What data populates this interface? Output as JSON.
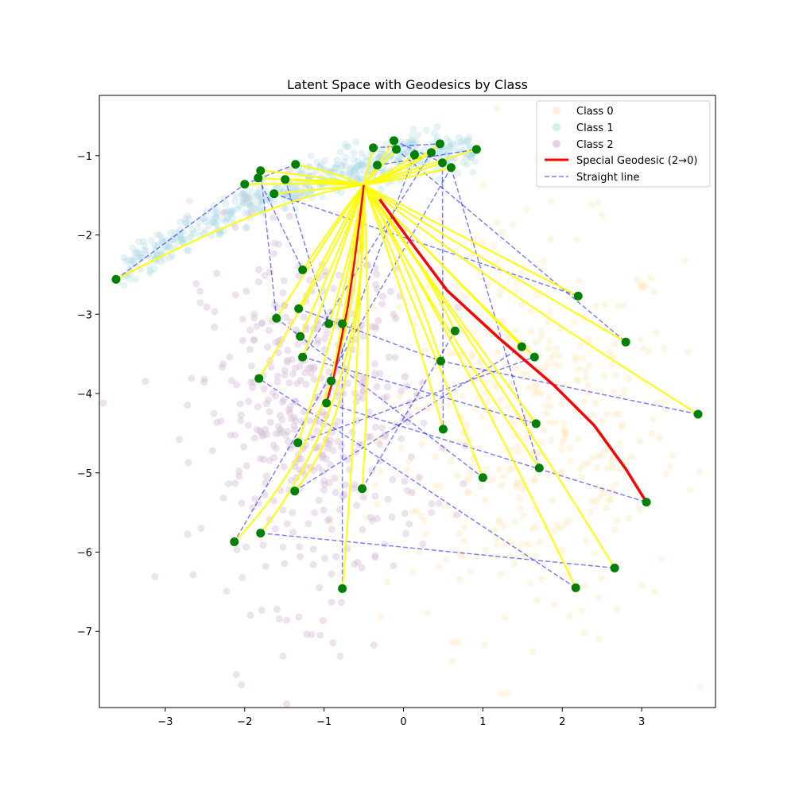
{
  "chart_data": {
    "type": "scatter",
    "title": "Latent Space with Geodesics by Class",
    "xlabel": "",
    "ylabel": "",
    "xlim": [
      -3.83,
      3.93
    ],
    "ylim": [
      -7.96,
      -0.24
    ],
    "xticks": [
      -3,
      -2,
      -1,
      0,
      1,
      2,
      3
    ],
    "yticks": [
      -1,
      -2,
      -3,
      -4,
      -5,
      -6,
      -7
    ],
    "tick_labels_x": [
      "−3",
      "−2",
      "−1",
      "0",
      "1",
      "2",
      "3"
    ],
    "tick_labels_y": [
      "−1",
      "−2",
      "−3",
      "−4",
      "−5",
      "−6",
      "−7"
    ],
    "grid": false,
    "legend_position": "top-right",
    "legend": {
      "class0": "Class 0",
      "class1": "Class 1",
      "class2": "Class 2",
      "special": "Special Geodesic (2→0)",
      "straight": "Straight line"
    },
    "colors": {
      "class0": "#FFE4B5",
      "class1": "#ADD8E6",
      "class2": "#D8BFD8",
      "geodesic": "#FFFF00",
      "special": "#FF0000",
      "straight": "#0000FF",
      "endpoint": "#008000"
    },
    "class_clusters": [
      {
        "class": 0,
        "center": [
          1.6,
          -4.5
        ],
        "spread": [
          0.95,
          1.25
        ],
        "count": 420
      },
      {
        "class": 1,
        "center": [
          -0.3,
          -1.05
        ],
        "spread": [
          1.1,
          0.25
        ],
        "count": 520
      },
      {
        "class": 2,
        "center": [
          -1.15,
          -4.3
        ],
        "spread": [
          0.7,
          1.15
        ],
        "count": 460
      }
    ],
    "hub": [
      -0.5,
      -1.37
    ],
    "endpoints": [
      [
        -3.62,
        -2.56
      ],
      [
        -2.0,
        -1.36
      ],
      [
        -1.8,
        -1.19
      ],
      [
        -1.83,
        -1.28
      ],
      [
        -1.63,
        -1.48
      ],
      [
        -1.49,
        -1.3
      ],
      [
        -1.36,
        -1.11
      ],
      [
        -0.38,
        -0.9
      ],
      [
        -0.33,
        -1.12
      ],
      [
        -0.12,
        -0.81
      ],
      [
        -0.09,
        -0.92
      ],
      [
        0.14,
        -0.99
      ],
      [
        0.35,
        -0.96
      ],
      [
        0.46,
        -0.85
      ],
      [
        0.49,
        -1.09
      ],
      [
        0.6,
        -1.15
      ],
      [
        0.92,
        -0.92
      ],
      [
        -1.27,
        -2.44
      ],
      [
        -1.6,
        -3.05
      ],
      [
        -1.32,
        -2.93
      ],
      [
        -1.3,
        -3.28
      ],
      [
        -1.27,
        -3.54
      ],
      [
        -0.94,
        -3.12
      ],
      [
        -0.77,
        -3.12
      ],
      [
        -1.82,
        -3.81
      ],
      [
        -0.91,
        -3.84
      ],
      [
        -1.33,
        -4.62
      ],
      [
        -1.37,
        -5.23
      ],
      [
        -1.8,
        -5.76
      ],
      [
        -2.13,
        -5.87
      ],
      [
        -0.52,
        -5.2
      ],
      [
        -0.77,
        -6.46
      ],
      [
        0.47,
        -3.59
      ],
      [
        0.65,
        -3.21
      ],
      [
        0.5,
        -4.45
      ],
      [
        1.0,
        -5.06
      ],
      [
        1.49,
        -3.41
      ],
      [
        1.65,
        -3.54
      ],
      [
        1.67,
        -4.38
      ],
      [
        1.71,
        -4.94
      ],
      [
        2.2,
        -2.77
      ],
      [
        2.8,
        -3.35
      ],
      [
        3.71,
        -4.26
      ],
      [
        2.66,
        -6.2
      ],
      [
        2.17,
        -6.45
      ],
      [
        3.06,
        -5.37
      ],
      [
        -0.97,
        -4.12
      ]
    ],
    "special_geodesic": [
      [
        -0.5,
        -1.37
      ],
      [
        -0.55,
        -1.8
      ],
      [
        -0.62,
        -2.35
      ],
      [
        -0.7,
        -2.9
      ],
      [
        -0.8,
        -3.4
      ],
      [
        -0.88,
        -3.8
      ],
      [
        -0.97,
        -4.12
      ]
    ],
    "special_geodesic_b": [
      [
        -0.3,
        -1.55
      ],
      [
        0.1,
        -2.1
      ],
      [
        0.55,
        -2.7
      ],
      [
        1.2,
        -3.3
      ],
      [
        1.9,
        -3.9
      ],
      [
        2.4,
        -4.4
      ],
      [
        2.8,
        -4.95
      ],
      [
        3.06,
        -5.37
      ]
    ],
    "straight_lines": [
      [
        [
          -3.62,
          -2.56
        ],
        [
          -2.0,
          -1.36
        ]
      ],
      [
        [
          -2.0,
          -1.36
        ],
        [
          -1.36,
          -1.11
        ]
      ],
      [
        [
          -1.8,
          -1.19
        ],
        [
          -1.6,
          -3.05
        ]
      ],
      [
        [
          -1.83,
          -1.28
        ],
        [
          -1.27,
          -2.44
        ]
      ],
      [
        [
          -1.63,
          -1.48
        ],
        [
          2.2,
          -2.77
        ]
      ],
      [
        [
          -1.49,
          -1.3
        ],
        [
          -0.94,
          -3.12
        ]
      ],
      [
        [
          -0.38,
          -0.9
        ],
        [
          0.46,
          -0.85
        ]
      ],
      [
        [
          -0.33,
          -1.12
        ],
        [
          0.92,
          -0.92
        ]
      ],
      [
        [
          -0.12,
          -0.81
        ],
        [
          0.49,
          -1.09
        ]
      ],
      [
        [
          -0.09,
          -0.92
        ],
        [
          2.8,
          -3.35
        ]
      ],
      [
        [
          0.14,
          -0.99
        ],
        [
          -0.91,
          -3.84
        ]
      ],
      [
        [
          0.35,
          -0.96
        ],
        [
          -1.27,
          -3.54
        ]
      ],
      [
        [
          0.6,
          -1.15
        ],
        [
          1.71,
          -4.94
        ]
      ],
      [
        [
          0.6,
          -1.15
        ],
        [
          -2.13,
          -5.87
        ]
      ],
      [
        [
          0.49,
          -1.09
        ],
        [
          0.5,
          -4.45
        ]
      ],
      [
        [
          -1.6,
          -3.05
        ],
        [
          1.0,
          -5.06
        ]
      ],
      [
        [
          -1.32,
          -2.93
        ],
        [
          0.47,
          -3.59
        ]
      ],
      [
        [
          -1.27,
          -3.54
        ],
        [
          1.67,
          -4.38
        ]
      ],
      [
        [
          -0.97,
          -4.12
        ],
        [
          3.06,
          -5.37
        ]
      ],
      [
        [
          -1.8,
          -5.76
        ],
        [
          2.66,
          -6.2
        ]
      ],
      [
        [
          -1.37,
          -5.23
        ],
        [
          1.49,
          -3.41
        ]
      ],
      [
        [
          0.47,
          -3.59
        ],
        [
          3.71,
          -4.26
        ]
      ],
      [
        [
          -0.77,
          -6.46
        ],
        [
          -0.77,
          -3.12
        ]
      ],
      [
        [
          -1.33,
          -4.62
        ],
        [
          1.65,
          -3.54
        ]
      ],
      [
        [
          -0.52,
          -5.2
        ],
        [
          0.65,
          -3.21
        ]
      ],
      [
        [
          2.17,
          -6.45
        ],
        [
          -1.82,
          -3.81
        ]
      ]
    ],
    "geodesics": [
      {
        "from": [
          -3.62,
          -2.56
        ],
        "via": [
          -1.6,
          -1.5
        ]
      },
      {
        "from": [
          -2.0,
          -1.36
        ],
        "via": [
          -1.2,
          -1.35
        ]
      },
      {
        "from": [
          -1.8,
          -1.19
        ],
        "via": [
          -1.1,
          -1.25
        ]
      },
      {
        "from": [
          -1.83,
          -1.28
        ],
        "via": [
          -1.1,
          -1.33
        ]
      },
      {
        "from": [
          -1.63,
          -1.48
        ],
        "via": [
          -1.0,
          -1.42
        ]
      },
      {
        "from": [
          -1.49,
          -1.3
        ],
        "via": [
          -1.0,
          -1.3
        ]
      },
      {
        "from": [
          -1.36,
          -1.11
        ],
        "via": [
          -0.9,
          -1.2
        ]
      },
      {
        "from": [
          -0.38,
          -0.9
        ],
        "via": [
          -0.45,
          -1.15
        ]
      },
      {
        "from": [
          -0.33,
          -1.12
        ],
        "via": [
          -0.42,
          -1.25
        ]
      },
      {
        "from": [
          -0.12,
          -0.81
        ],
        "via": [
          -0.3,
          -1.1
        ]
      },
      {
        "from": [
          -0.09,
          -0.92
        ],
        "via": [
          -0.3,
          -1.15
        ]
      },
      {
        "from": [
          0.14,
          -0.99
        ],
        "via": [
          -0.15,
          -1.2
        ]
      },
      {
        "from": [
          0.35,
          -0.96
        ],
        "via": [
          0.0,
          -1.2
        ]
      },
      {
        "from": [
          0.46,
          -0.85
        ],
        "via": [
          0.05,
          -1.15
        ]
      },
      {
        "from": [
          0.49,
          -1.09
        ],
        "via": [
          0.05,
          -1.25
        ]
      },
      {
        "from": [
          0.6,
          -1.15
        ],
        "via": [
          0.1,
          -1.28
        ]
      },
      {
        "from": [
          0.92,
          -0.92
        ],
        "via": [
          0.2,
          -1.15
        ]
      },
      {
        "from": [
          -1.27,
          -2.44
        ],
        "via": [
          -0.85,
          -1.8
        ]
      },
      {
        "from": [
          -1.6,
          -3.05
        ],
        "via": [
          -0.95,
          -2.0
        ]
      },
      {
        "from": [
          -1.32,
          -2.93
        ],
        "via": [
          -0.85,
          -2.0
        ]
      },
      {
        "from": [
          -1.3,
          -3.28
        ],
        "via": [
          -0.8,
          -2.2
        ]
      },
      {
        "from": [
          -1.27,
          -3.54
        ],
        "via": [
          -0.8,
          -2.3
        ]
      },
      {
        "from": [
          -0.94,
          -3.12
        ],
        "via": [
          -0.65,
          -2.2
        ]
      },
      {
        "from": [
          -0.77,
          -3.12
        ],
        "via": [
          -0.6,
          -2.2
        ]
      },
      {
        "from": [
          -1.82,
          -3.81
        ],
        "via": [
          -0.95,
          -2.4
        ]
      },
      {
        "from": [
          -0.91,
          -3.84
        ],
        "via": [
          -0.65,
          -2.5
        ]
      },
      {
        "from": [
          -1.33,
          -4.62
        ],
        "via": [
          -0.7,
          -2.8
        ]
      },
      {
        "from": [
          -1.37,
          -5.23
        ],
        "via": [
          -0.5,
          -4.2
        ]
      },
      {
        "from": [
          -1.8,
          -5.76
        ],
        "via": [
          -0.45,
          -4.05
        ]
      },
      {
        "from": [
          -2.13,
          -5.87
        ],
        "via": [
          -0.6,
          -4.3
        ]
      },
      {
        "from": [
          -0.52,
          -5.2
        ],
        "via": [
          -0.4,
          -3.5
        ]
      },
      {
        "from": [
          -0.77,
          -6.46
        ],
        "via": [
          -0.6,
          -4.5
        ]
      },
      {
        "from": [
          0.47,
          -3.59
        ],
        "via": [
          0.05,
          -2.3
        ]
      },
      {
        "from": [
          0.65,
          -3.21
        ],
        "via": [
          0.1,
          -2.1
        ]
      },
      {
        "from": [
          0.5,
          -4.45
        ],
        "via": [
          0.0,
          -2.7
        ]
      },
      {
        "from": [
          1.0,
          -5.06
        ],
        "via": [
          0.2,
          -3.0
        ]
      },
      {
        "from": [
          1.49,
          -3.41
        ],
        "via": [
          0.4,
          -2.3
        ]
      },
      {
        "from": [
          1.65,
          -3.54
        ],
        "via": [
          0.5,
          -2.4
        ]
      },
      {
        "from": [
          1.67,
          -4.38
        ],
        "via": [
          0.5,
          -2.8
        ]
      },
      {
        "from": [
          1.71,
          -4.94
        ],
        "via": [
          0.45,
          -3.1
        ]
      },
      {
        "from": [
          2.2,
          -2.77
        ],
        "via": [
          0.6,
          -1.95
        ]
      },
      {
        "from": [
          2.8,
          -3.35
        ],
        "via": [
          0.8,
          -2.2
        ]
      },
      {
        "from": [
          3.71,
          -4.26
        ],
        "via": [
          1.2,
          -2.7
        ]
      },
      {
        "from": [
          2.66,
          -6.2
        ],
        "via": [
          1.0,
          -3.5
        ]
      },
      {
        "from": [
          2.17,
          -6.45
        ],
        "via": [
          0.8,
          -3.6
        ]
      }
    ]
  }
}
